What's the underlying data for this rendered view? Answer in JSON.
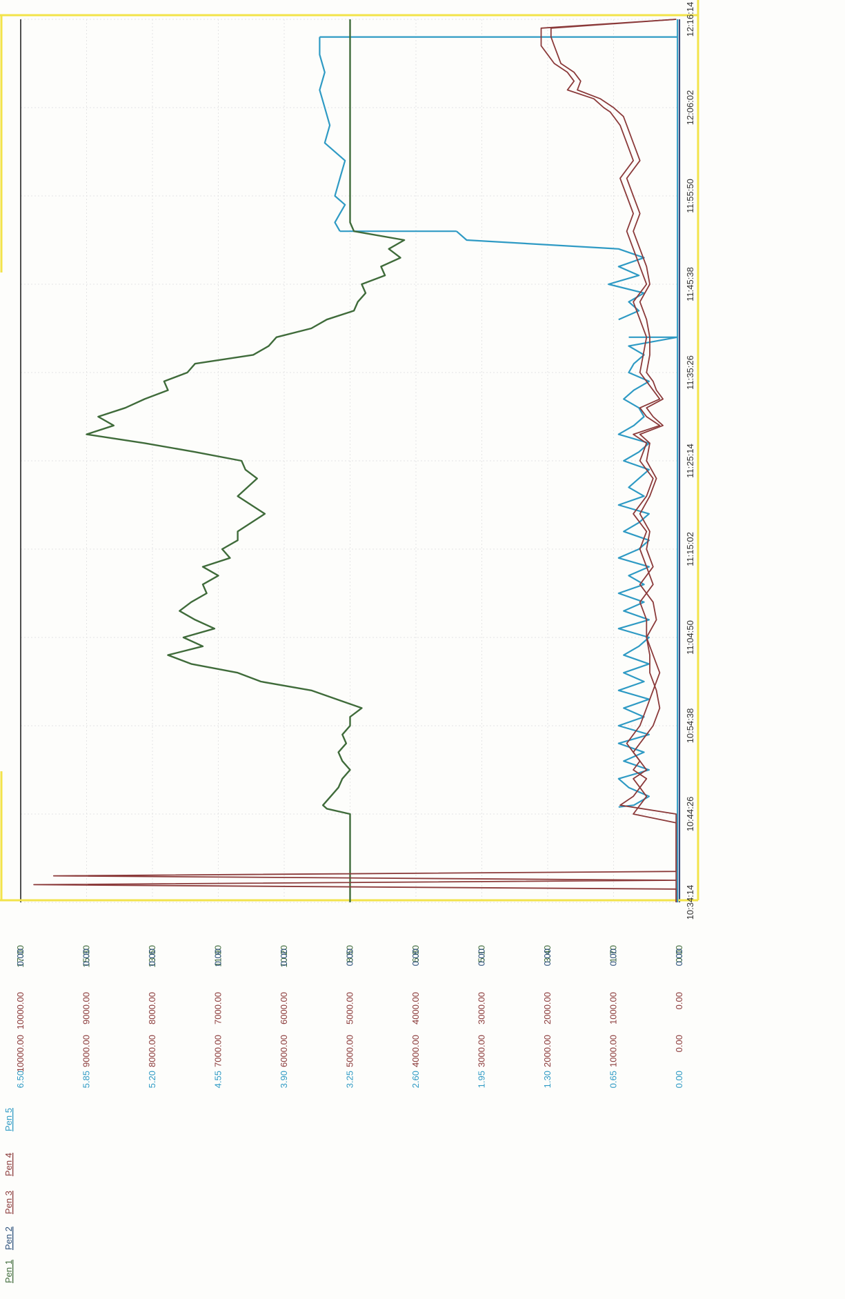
{
  "chart_data": {
    "type": "line",
    "orientation": "rotated-90-ccw",
    "grid": true,
    "x_ticks": [
      "10:34:14",
      "10:44:26",
      "10:54:38",
      "11:04:50",
      "11:15:02",
      "11:25:14",
      "11:35:26",
      "11:45:38",
      "11:55:50",
      "12:06:02",
      "12:16:14"
    ],
    "pens": [
      {
        "name": "Pen 1",
        "color": "#3f6b3a",
        "ticks": [
          "0.00",
          "1.70",
          "3.40",
          "5.10",
          "6.80",
          "8.50",
          "10.20",
          "11.90",
          "13.60",
          "15.30",
          "17.00"
        ]
      },
      {
        "name": "Pen 2",
        "color": "#2a4f7a",
        "ticks": [
          "0.00",
          "0.00",
          "0.00",
          "0.00",
          "0.00",
          "0.00",
          "0.00",
          "0.00",
          "0.00",
          "0.00",
          "0.00"
        ]
      },
      {
        "name": "Pen 3",
        "color": "#8b3a3a",
        "ticks": [
          "0.00",
          "1000.00",
          "2000.00",
          "3000.00",
          "4000.00",
          "5000.00",
          "6000.00",
          "7000.00",
          "8000.00",
          "9000.00",
          "10000.00"
        ]
      },
      {
        "name": "Pen 4",
        "color": "#8b3a3a",
        "ticks": [
          "0.00",
          "1000.00",
          "2000.00",
          "3000.00",
          "4000.00",
          "5000.00",
          "6000.00",
          "7000.00",
          "8000.00",
          "9000.00",
          "10000.00"
        ]
      },
      {
        "name": "Pen 5",
        "color": "#2e9ac4",
        "ticks": [
          "0.00",
          "0.65",
          "1.30",
          "1.95",
          "2.60",
          "3.25",
          "3.90",
          "4.55",
          "5.20",
          "5.85",
          "6.50"
        ]
      }
    ],
    "series": [
      {
        "name": "Pen 1",
        "color": "#3f6b3a",
        "unit_min": 0,
        "unit_max": 17,
        "x": [
          0,
          8,
          9,
          10,
          10.6,
          11,
          12,
          13,
          14,
          15,
          16,
          17,
          18,
          19,
          19.5,
          20,
          21,
          22,
          24,
          25,
          26,
          27,
          28,
          29,
          30,
          31,
          32,
          33,
          34,
          35,
          36,
          37,
          38,
          39,
          40,
          41,
          42,
          44,
          46,
          48,
          49,
          50,
          51,
          52,
          53,
          54,
          55,
          56,
          57,
          58,
          59,
          60,
          61,
          62,
          63,
          64,
          65,
          66,
          67,
          68,
          69,
          70,
          71,
          72,
          73,
          74,
          75,
          76,
          77,
          78,
          80,
          82,
          84,
          86,
          88,
          90,
          92,
          94,
          96,
          98,
          100
        ],
        "y": [
          8.5,
          8.5,
          8.5,
          8.5,
          9.1,
          9.2,
          9.0,
          8.8,
          8.7,
          8.5,
          8.7,
          8.8,
          8.6,
          8.7,
          8.6,
          8.5,
          8.5,
          8.2,
          9.5,
          10.8,
          11.4,
          12.6,
          13.2,
          12.3,
          12.8,
          12.0,
          12.5,
          12.9,
          12.6,
          12.2,
          12.3,
          11.9,
          12.3,
          11.6,
          11.8,
          11.4,
          11.4,
          10.7,
          11.4,
          10.9,
          11.2,
          11.3,
          12.5,
          13.8,
          15.3,
          14.6,
          15.0,
          14.3,
          13.8,
          13.2,
          13.3,
          12.7,
          12.5,
          11.0,
          10.6,
          10.4,
          9.5,
          9.1,
          8.4,
          8.3,
          8.1,
          8.2,
          7.6,
          7.7,
          7.2,
          7.5,
          7.1,
          8.4,
          8.5,
          8.5,
          8.5,
          8.5,
          8.5,
          8.5,
          8.5,
          8.5,
          8.5,
          8.5,
          8.5,
          8.5,
          8.5
        ]
      },
      {
        "name": "Pen 3",
        "color": "#8b3a3a",
        "unit_min": 0,
        "unit_max": 10000,
        "x": [
          0,
          1.5,
          2,
          2.5,
          3,
          3.5,
          4,
          9,
          10,
          11,
          12,
          13,
          14,
          15,
          16,
          17,
          18,
          19,
          20,
          22,
          24,
          26,
          28,
          30,
          32,
          34,
          36,
          38,
          40,
          42,
          44,
          46,
          48,
          50,
          52,
          53,
          54,
          55,
          56,
          57,
          58,
          59,
          60,
          62,
          64,
          66,
          68,
          70,
          72,
          74,
          76,
          78,
          80,
          82,
          84,
          86,
          88,
          89,
          89.5,
          90,
          91,
          92,
          93,
          94,
          95,
          96,
          97,
          98,
          99,
          100
        ],
        "y": [
          50,
          50,
          9800,
          50,
          9500,
          50,
          50,
          50,
          50,
          900,
          700,
          600,
          700,
          500,
          600,
          700,
          800,
          700,
          600,
          500,
          400,
          300,
          400,
          500,
          500,
          600,
          400,
          500,
          600,
          500,
          700,
          500,
          400,
          600,
          500,
          700,
          300,
          500,
          600,
          300,
          400,
          500,
          600,
          550,
          500,
          600,
          700,
          500,
          600,
          700,
          800,
          700,
          800,
          900,
          700,
          800,
          900,
          1000,
          1050,
          1150,
          1300,
          1700,
          1600,
          1700,
          1900,
          2000,
          2100,
          2100,
          2100,
          50
        ]
      },
      {
        "name": "Pen 4",
        "color": "#8b3a3a",
        "unit_min": 0,
        "unit_max": 10000,
        "x": [
          0,
          9,
          10,
          11,
          12,
          13,
          14,
          15,
          16,
          17,
          18,
          19,
          20,
          22,
          24,
          26,
          28,
          30,
          32,
          34,
          36,
          38,
          40,
          42,
          44,
          46,
          48,
          50,
          52,
          53,
          54,
          55,
          56,
          57,
          58,
          59,
          60,
          62,
          64,
          66,
          68,
          70,
          72,
          74,
          76,
          78,
          80,
          82,
          84,
          86,
          88,
          89,
          90,
          91,
          92,
          93,
          94,
          95,
          96,
          97,
          98,
          99,
          100
        ],
        "y": [
          50,
          50,
          700,
          600,
          500,
          600,
          500,
          700,
          600,
          700,
          600,
          500,
          400,
          300,
          350,
          450,
          450,
          500,
          350,
          400,
          600,
          400,
          500,
          450,
          600,
          450,
          350,
          500,
          450,
          600,
          250,
          400,
          500,
          250,
          350,
          400,
          500,
          450,
          450,
          500,
          600,
          450,
          500,
          600,
          700,
          600,
          700,
          800,
          600,
          700,
          800,
          850,
          1000,
          1200,
          1550,
          1500,
          1600,
          1800,
          1850,
          1900,
          1950,
          1950,
          50
        ]
      },
      {
        "name": "Pen 5",
        "color": "#2e9ac4",
        "unit_min": 0,
        "unit_max": 6.5,
        "x": [
          0,
          8,
          9,
          10,
          11,
          12,
          13,
          14,
          15,
          16,
          17,
          18,
          20,
          22,
          24,
          26,
          28,
          30,
          32,
          34,
          36,
          38,
          40,
          42,
          44,
          46,
          48,
          50,
          52,
          53,
          54,
          55,
          56,
          57,
          58,
          59,
          60,
          62,
          63.5,
          64,
          64.5,
          65,
          66,
          67,
          68,
          70,
          72,
          74,
          76,
          78,
          80,
          82,
          84,
          86,
          88,
          89,
          89.5,
          90,
          90.5,
          91,
          92,
          93,
          93.5,
          94,
          94.5,
          95,
          96,
          96.5,
          97,
          97.5,
          98,
          99,
          100
        ],
        "y": [
          0.02,
          0.02,
          0.02,
          0.02,
          0.02,
          0.02,
          0.02,
          0.02,
          0.02,
          0.02,
          0.02,
          0.02,
          0.02,
          0.02,
          0.02,
          0.02,
          0.02,
          0.02,
          0.02,
          0.02,
          0.02,
          0.02,
          0.02,
          0.02,
          0.02,
          0.02,
          0.02,
          0.02,
          0.02,
          0.02,
          0.02,
          0.02,
          0.02,
          0.02,
          0.02,
          0.02,
          0.02,
          0.02,
          0.02,
          0.02,
          0.02,
          0.02,
          0.02,
          0.02,
          0.02,
          0.02,
          0.02,
          0.02,
          0.02,
          0.02,
          0.02,
          0.02,
          0.02,
          0.02,
          0.02,
          0.02,
          0.02,
          0.02,
          0.02,
          0.02,
          0.02,
          0.02,
          0.02,
          0.02,
          0.02,
          0.02,
          0.02,
          0.02,
          0.02,
          0.02,
          0.02,
          0.02,
          0.02
        ]
      }
    ],
    "pen5_segments": [
      {
        "x": [
          10.8,
          11,
          12,
          13,
          14,
          15,
          16,
          17,
          18,
          19,
          20,
          21,
          22,
          23,
          24,
          25,
          26,
          27,
          28,
          29,
          30,
          31,
          32,
          33,
          34,
          35,
          36,
          37,
          38,
          39,
          40,
          41,
          42,
          43,
          44,
          45,
          46,
          47,
          48,
          49,
          50,
          51,
          52,
          53,
          54,
          55,
          56,
          57,
          58,
          59,
          60,
          61,
          62,
          63,
          64
        ],
        "y": [
          0.6,
          0.45,
          0.3,
          0.5,
          0.6,
          0.3,
          0.55,
          0.35,
          0.6,
          0.3,
          0.6,
          0.35,
          0.55,
          0.3,
          0.6,
          0.35,
          0.55,
          0.3,
          0.55,
          0.4,
          0.3,
          0.6,
          0.3,
          0.55,
          0.35,
          0.6,
          0.35,
          0.5,
          0.3,
          0.6,
          0.4,
          0.3,
          0.55,
          0.4,
          0.3,
          0.6,
          0.35,
          0.5,
          0.4,
          0.3,
          0.55,
          0.4,
          0.3,
          0.6,
          0.45,
          0.35,
          0.4,
          0.55,
          0.45,
          0.3,
          0.5,
          0.45,
          0.35,
          0.5,
          0.02
        ]
      },
      {
        "x": [
          66,
          67,
          68,
          69,
          70,
          71,
          72,
          73,
          74,
          75,
          76
        ],
        "y": [
          0.6,
          0.4,
          0.5,
          0.35,
          0.7,
          0.4,
          0.6,
          0.35,
          0.6,
          2.1,
          2.2
        ]
      },
      {
        "x": [
          76,
          77,
          78,
          79,
          80,
          82,
          84,
          86,
          88,
          90,
          92,
          94,
          96,
          97,
          98
        ],
        "y": [
          3.35,
          3.4,
          3.35,
          3.3,
          3.4,
          3.35,
          3.3,
          3.5,
          3.45,
          3.5,
          3.55,
          3.5,
          3.55,
          3.55,
          3.55
        ]
      }
    ]
  }
}
